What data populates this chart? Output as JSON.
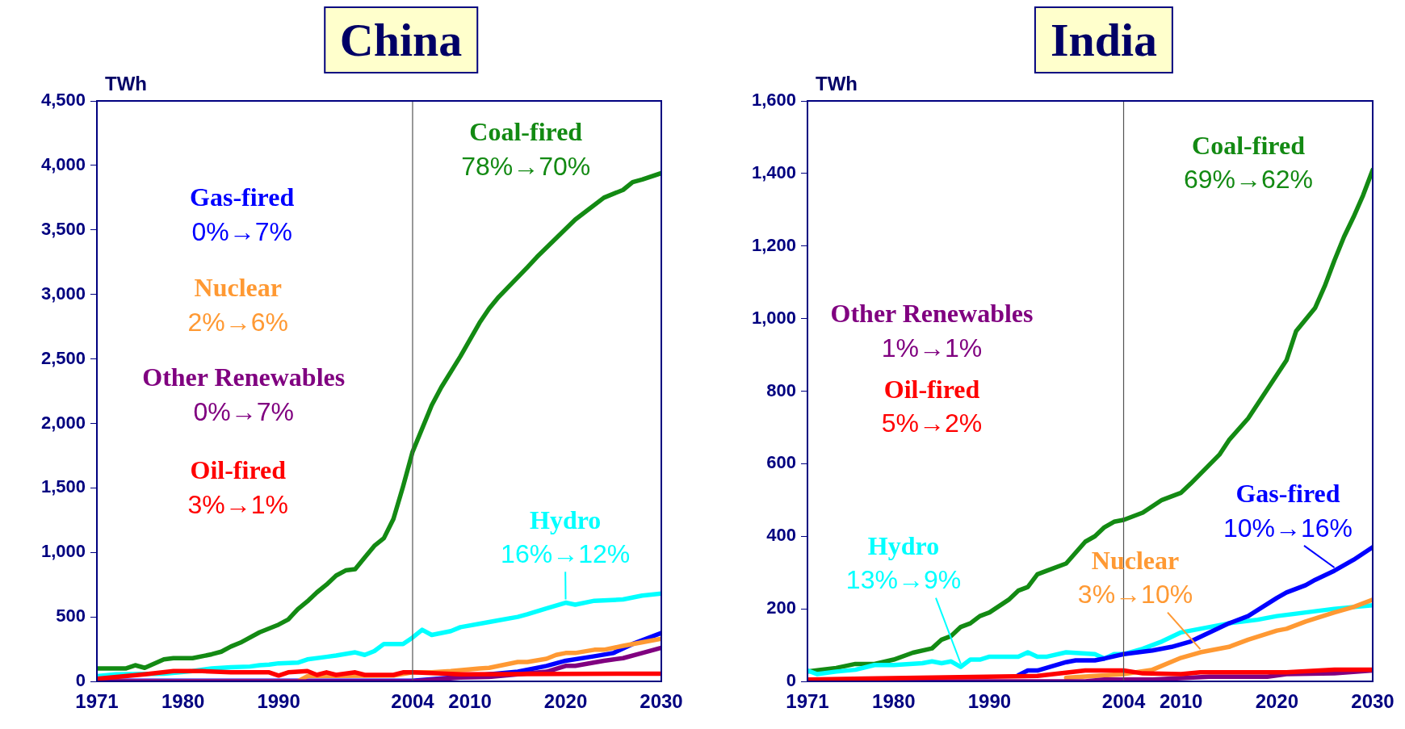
{
  "chart_data": [
    {
      "type": "line",
      "title": "China",
      "ylabel": "TWh",
      "xlim": [
        1971,
        2030
      ],
      "xticks": [
        1971,
        1980,
        1990,
        2004,
        2010,
        2020,
        2030
      ],
      "ylim": [
        0,
        4500
      ],
      "yticks": [
        0,
        500,
        {
          "value": 1000,
          "label": "1,000"
        },
        {
          "value": 1500,
          "label": "1,500"
        },
        {
          "value": 2000,
          "label": "2,000"
        },
        {
          "value": 2500,
          "label": "2,500"
        },
        {
          "value": 3000,
          "label": "3,000"
        },
        {
          "value": 3500,
          "label": "3,500"
        },
        {
          "value": 4000,
          "label": "4,000"
        },
        {
          "value": 4500,
          "label": "4,500"
        }
      ],
      "grid": false,
      "legend": false,
      "marker": "none",
      "line_style": "solid",
      "ref_lines": [
        {
          "axis": "x",
          "value": 2004,
          "color": "#555555"
        }
      ],
      "annotations": [
        "78%→70%",
        {
          "text": "16%→12%",
          "x": 2020,
          "y": 610
        },
        "0%→7%",
        "2%→6%",
        "0%→7%",
        "3%→1%"
      ],
      "series": [
        {
          "name": "Coal-fired",
          "color": "#138a13",
          "x": [
            1971,
            1974,
            1975,
            1976,
            1978,
            1979,
            1981,
            1983,
            1984,
            1985,
            1986,
            1988,
            1990,
            1991,
            1992,
            1993,
            1994,
            1995,
            1996,
            1997,
            1998,
            1999,
            2000,
            2001,
            2002,
            2003,
            2004,
            2006,
            2007,
            2009,
            2011,
            2012,
            2013,
            2016,
            2017,
            2021,
            2024,
            2026,
            2027,
            2028,
            2030
          ],
          "values": [
            100,
            100,
            125,
            105,
            170,
            180,
            180,
            210,
            230,
            270,
            300,
            380,
            440,
            480,
            560,
            620,
            690,
            750,
            820,
            860,
            870,
            960,
            1050,
            1110,
            1260,
            1510,
            1780,
            2140,
            2280,
            2520,
            2780,
            2890,
            2980,
            3210,
            3290,
            3580,
            3750,
            3810,
            3870,
            3890,
            3940
          ]
        },
        {
          "name": "Hydro",
          "color": "#00ffff",
          "x": [
            1971,
            1973,
            1978,
            1981,
            1983,
            1985,
            1987,
            1988,
            1989,
            1990,
            1992,
            1993,
            1995,
            1996,
            1998,
            1999,
            2000,
            2001,
            2003,
            2004,
            2005,
            2006,
            2008,
            2009,
            2012,
            2015,
            2016,
            2018,
            2020,
            2021,
            2023,
            2026,
            2028,
            2030
          ],
          "values": [
            40,
            55,
            60,
            80,
            100,
            110,
            115,
            125,
            130,
            140,
            145,
            170,
            190,
            200,
            225,
            205,
            235,
            290,
            290,
            340,
            400,
            360,
            390,
            420,
            460,
            500,
            520,
            565,
            610,
            595,
            625,
            635,
            665,
            680
          ]
        },
        {
          "name": "Gas-fired",
          "color": "#0000ff",
          "x": [
            1971,
            2004,
            2009,
            2015,
            2018,
            2020,
            2023,
            2025,
            2027,
            2030
          ],
          "values": [
            5,
            5,
            35,
            75,
            120,
            160,
            195,
            220,
            290,
            375
          ]
        },
        {
          "name": "Nuclear",
          "color": "#ff9933",
          "x": [
            1971,
            1992,
            1993,
            2002,
            2004,
            2006,
            2008,
            2011,
            2012,
            2015,
            2016,
            2018,
            2019,
            2020,
            2021,
            2023,
            2024,
            2026,
            2030
          ],
          "values": [
            0,
            0,
            40,
            45,
            70,
            70,
            80,
            100,
            105,
            150,
            150,
            175,
            205,
            220,
            220,
            245,
            245,
            275,
            330
          ]
        },
        {
          "name": "Other Renewables",
          "color": "#800080",
          "x": [
            1971,
            2004,
            2009,
            2012,
            2015,
            2018,
            2020,
            2021,
            2024,
            2026,
            2028,
            2030
          ],
          "values": [
            0,
            0,
            30,
            35,
            55,
            75,
            120,
            120,
            160,
            180,
            220,
            260
          ]
        },
        {
          "name": "Oil-fired",
          "color": "#ff0000",
          "x": [
            1971,
            1976,
            1979,
            1982,
            1985,
            1989,
            1990,
            1991,
            1993,
            1994,
            1995,
            1996,
            1998,
            1999,
            2002,
            2003,
            2004,
            2009,
            2030
          ],
          "values": [
            20,
            55,
            80,
            80,
            70,
            70,
            45,
            70,
            80,
            50,
            70,
            50,
            70,
            50,
            50,
            70,
            70,
            55,
            60
          ]
        }
      ]
    },
    {
      "type": "line",
      "title": "India",
      "ylabel": "TWh",
      "xlim": [
        1971,
        2030
      ],
      "xticks": [
        1971,
        1980,
        1990,
        2004,
        2010,
        2020,
        2030
      ],
      "ylim": [
        0,
        1600
      ],
      "yticks": [
        0,
        200,
        400,
        600,
        800,
        {
          "value": 1000,
          "label": "1,000"
        },
        {
          "value": 1200,
          "label": "1,200"
        },
        {
          "value": 1400,
          "label": "1,400"
        },
        {
          "value": 1600,
          "label": "1,600"
        }
      ],
      "grid": false,
      "legend": false,
      "marker": "none",
      "line_style": "solid",
      "ref_lines": [
        {
          "axis": "x",
          "value": 2004,
          "color": "#555555"
        }
      ],
      "annotations": [
        "69%→62%",
        {
          "text": "13%→9%",
          "x": 1987,
          "y": 40
        },
        {
          "text": "10%→16%",
          "x": 2026,
          "y": 305
        },
        {
          "text": "3%→10%",
          "x": 2012,
          "y": 80
        },
        "1%→1%",
        "5%→2%"
      ],
      "series": [
        {
          "name": "Coal-fired",
          "color": "#138a13",
          "x": [
            1971,
            1974,
            1976,
            1978,
            1980,
            1982,
            1984,
            1985,
            1986,
            1987,
            1988,
            1989,
            1990,
            1992,
            1993,
            1994,
            1995,
            1996,
            1998,
            2000,
            2001,
            2002,
            2003,
            2004,
            2005,
            2006,
            2008,
            2010,
            2011,
            2014,
            2015,
            2017,
            2019,
            2021,
            2022,
            2024,
            2025,
            2026,
            2027,
            2028,
            2029,
            2030
          ],
          "values": [
            27,
            37,
            48,
            48,
            60,
            79,
            91,
            115,
            125,
            150,
            160,
            180,
            190,
            225,
            250,
            260,
            295,
            305,
            325,
            385,
            400,
            425,
            440,
            445,
            455,
            465,
            500,
            520,
            545,
            625,
            665,
            725,
            805,
            885,
            965,
            1030,
            1090,
            1160,
            1225,
            1280,
            1340,
            1410
          ]
        },
        {
          "name": "Hydro",
          "color": "#00ffff",
          "x": [
            1971,
            1972,
            1974,
            1976,
            1978,
            1980,
            1983,
            1984,
            1985,
            1986,
            1987,
            1988,
            1989,
            1990,
            1993,
            1994,
            1995,
            1996,
            1998,
            2001,
            2002,
            2003,
            2004,
            2006,
            2008,
            2010,
            2012,
            2015,
            2018,
            2020,
            2023,
            2026,
            2030
          ],
          "values": [
            30,
            20,
            27,
            32,
            45,
            45,
            50,
            55,
            50,
            55,
            40,
            60,
            60,
            68,
            68,
            80,
            68,
            68,
            80,
            75,
            63,
            75,
            75,
            90,
            110,
            135,
            145,
            160,
            170,
            180,
            190,
            200,
            210
          ]
        },
        {
          "name": "Gas-fired",
          "color": "#0000ff",
          "x": [
            1993,
            1994,
            1995,
            1998,
            1999,
            2001,
            2002,
            2004,
            2007,
            2009,
            2011,
            2013,
            2015,
            2017,
            2020,
            2021,
            2023,
            2024,
            2026,
            2028,
            2030
          ],
          "values": [
            17,
            30,
            30,
            53,
            58,
            58,
            63,
            75,
            85,
            95,
            110,
            135,
            160,
            180,
            230,
            245,
            265,
            280,
            305,
            335,
            370
          ]
        },
        {
          "name": "Nuclear",
          "color": "#ff9933",
          "x": [
            1998,
            2004,
            2007,
            2010,
            2012,
            2014,
            2015,
            2017,
            2020,
            2021,
            2023,
            2026,
            2028,
            2030
          ],
          "values": [
            10,
            20,
            32,
            65,
            80,
            90,
            95,
            115,
            140,
            145,
            165,
            190,
            205,
            225
          ]
        },
        {
          "name": "Other Renewables",
          "color": "#800080",
          "x": [
            1971,
            2000,
            2002,
            2007,
            2013,
            2019,
            2021,
            2026,
            2030
          ],
          "values": [
            0,
            0,
            5,
            5,
            13,
            13,
            20,
            22,
            30
          ]
        },
        {
          "name": "Oil-fired",
          "color": "#ff0000",
          "x": [
            1971,
            1977,
            1995,
            2000,
            2002,
            2004,
            2006,
            2010,
            2012,
            2021,
            2026,
            2030
          ],
          "values": [
            5,
            8,
            15,
            30,
            30,
            30,
            22,
            20,
            25,
            25,
            32,
            32
          ]
        }
      ]
    }
  ]
}
